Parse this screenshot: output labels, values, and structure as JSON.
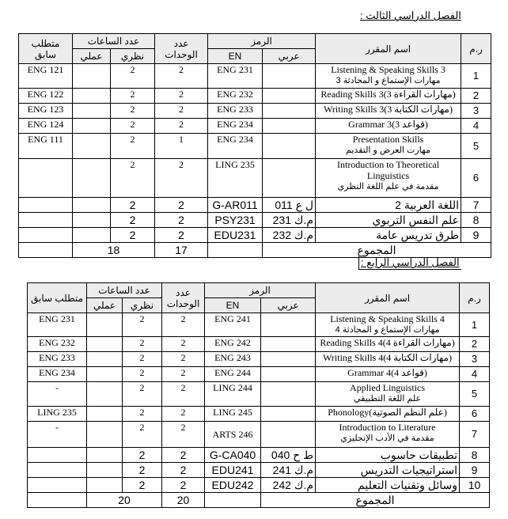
{
  "semester3": {
    "title": "الفصل الدراسي الثالث :",
    "headers": {
      "no": "ر.م",
      "name": "اسم المقرر",
      "code": "الرمز",
      "code_ar": "عربي",
      "code_en": "EN",
      "units": "عدد الوحدات",
      "hours": "عدد الساعات",
      "theory": "نظري",
      "practical": "عملي",
      "prereq": "متطلب سابق"
    },
    "rows": [
      {
        "no": "1",
        "name_en": "Listening & Speaking Skills 3",
        "name_ar": "مهارات الإستماع و المحادثة 3",
        "code_ar": "",
        "code_en": "ENG 231",
        "units": "2",
        "theory": "2",
        "practical": "",
        "prereq": "ENG 121"
      },
      {
        "no": "2",
        "name_en": "Reading Skills 3(مهارات القراءة 3)",
        "name_ar": "",
        "code_ar": "",
        "code_en": "ENG 232",
        "units": "2",
        "theory": "2",
        "practical": "",
        "prereq": "ENG 122"
      },
      {
        "no": "3",
        "name_en": "Writing Skills 3(مهارات الكتابة 3)",
        "name_ar": "",
        "code_ar": "",
        "code_en": "ENG 233",
        "units": "2",
        "theory": "2",
        "practical": "",
        "prereq": "ENG 123"
      },
      {
        "no": "4",
        "name_en": "Grammar 3(قواعد 3)",
        "name_ar": "",
        "code_ar": "",
        "code_en": "ENG 234",
        "units": "2",
        "theory": "2",
        "practical": "",
        "prereq": "ENG 124"
      },
      {
        "no": "5",
        "name_en": "Presentation Skills",
        "name_ar": "مهارت العرض و  التقديم",
        "code_ar": "",
        "code_en": "ENG 234",
        "units": "1",
        "theory": "2",
        "practical": "",
        "prereq": "ENG 111"
      },
      {
        "no": "6",
        "name_en": "Introduction to Theoretical Linguistics",
        "name_ar": "مقدمة في علم اللغة النظري",
        "code_ar": "",
        "code_en": "LING 235",
        "units": "2",
        "theory": "2",
        "practical": "",
        "prereq": ""
      },
      {
        "no": "7",
        "name_en": "",
        "name_ar": "اللغة العربية 2",
        "code_ar": "ل ع 011",
        "code_en": "G-AR011",
        "units": "2",
        "theory": "2",
        "practical": "",
        "prereq": ""
      },
      {
        "no": "8",
        "name_en": "",
        "name_ar": "علم النفس التربوي",
        "code_ar": "م.ك 231",
        "code_en": "PSY231",
        "units": "2",
        "theory": "2",
        "practical": "",
        "prereq": ""
      },
      {
        "no": "9",
        "name_en": "",
        "name_ar": "طرق تدريس عامة",
        "code_ar": "م.ك 232",
        "code_en": "EDU231",
        "units": "2",
        "theory": "2",
        "practical": "",
        "prereq": ""
      }
    ],
    "total": {
      "label": "المجموع",
      "units": "17",
      "hours": "18"
    }
  },
  "semester4": {
    "title": "الفصل الدراسي الرابع :",
    "headers": {
      "no": "ر.م",
      "name": "اسم المقرر",
      "code": "الرمز",
      "code_ar": "عربي",
      "code_en": "EN",
      "units": "عدد الوحدات",
      "hours": "عدد الساعات",
      "theory": "نظري",
      "practical": "عملي",
      "prereq": "متطلب سابق"
    },
    "rows": [
      {
        "no": "1",
        "name_en": "Listening & Speaking Skills 4",
        "name_ar": "مهارات الإستماع و المحادثة 4",
        "code_ar": "",
        "code_en": "ENG 241",
        "units": "2",
        "theory": "2",
        "practical": "",
        "prereq": "ENG 231"
      },
      {
        "no": "2",
        "name_en": "Reading Skills 4(مهارات القراءة 4)",
        "name_ar": "",
        "code_ar": "",
        "code_en": "ENG 242",
        "units": "2",
        "theory": "2",
        "practical": "",
        "prereq": "ENG 232"
      },
      {
        "no": "3",
        "name_en": "Writing Skills 4(مهارات الكتابة 4)",
        "name_ar": "",
        "code_ar": "",
        "code_en": "ENG 243",
        "units": "2",
        "theory": "2",
        "practical": "",
        "prereq": "ENG 233"
      },
      {
        "no": "4",
        "name_en": "Grammar 4(قواعد 4)",
        "name_ar": "",
        "code_ar": "",
        "code_en": "ENG 244",
        "units": "2",
        "theory": "2",
        "practical": "",
        "prereq": "ENG 234"
      },
      {
        "no": "5",
        "name_en": "Applied Linguistics",
        "name_ar": "علم اللغة التطبيقي",
        "code_ar": "",
        "code_en": "LING 244",
        "units": "2",
        "theory": "2",
        "practical": "",
        "prereq": "-"
      },
      {
        "no": "6",
        "name_en": "Phonology(علم النظم الصوتية)",
        "name_ar": "",
        "code_ar": "",
        "code_en": "LING 245",
        "units": "2",
        "theory": "2",
        "practical": "",
        "prereq": "LING 235"
      },
      {
        "no": "7",
        "name_en": "Introduction to Literature",
        "name_ar": "مقدمة في الأدب الإنجليزي",
        "code_ar": "",
        "code_en": "ARTS 246",
        "units": "2",
        "theory": "2",
        "practical": "",
        "prereq": "-"
      },
      {
        "no": "8",
        "name_en": "",
        "name_ar": "تطبيقات حاسوب",
        "code_ar": "ط ح 040",
        "code_en": "G-CA040",
        "units": "2",
        "theory": "2",
        "practical": "",
        "prereq": ""
      },
      {
        "no": "9",
        "name_en": "",
        "name_ar": "استراتيجيات التدريس",
        "code_ar": "م.ك 241",
        "code_en": "EDU241",
        "units": "2",
        "theory": "2",
        "practical": "",
        "prereq": ""
      },
      {
        "no": "10",
        "name_en": "",
        "name_ar": "وسائل وتقنيات التعليم",
        "code_ar": "م.ك 242",
        "code_en": "EDU242",
        "units": "2",
        "theory": "2",
        "practical": "",
        "prereq": ""
      }
    ],
    "total": {
      "label": "المجموع",
      "units": "20",
      "hours": "20"
    }
  }
}
